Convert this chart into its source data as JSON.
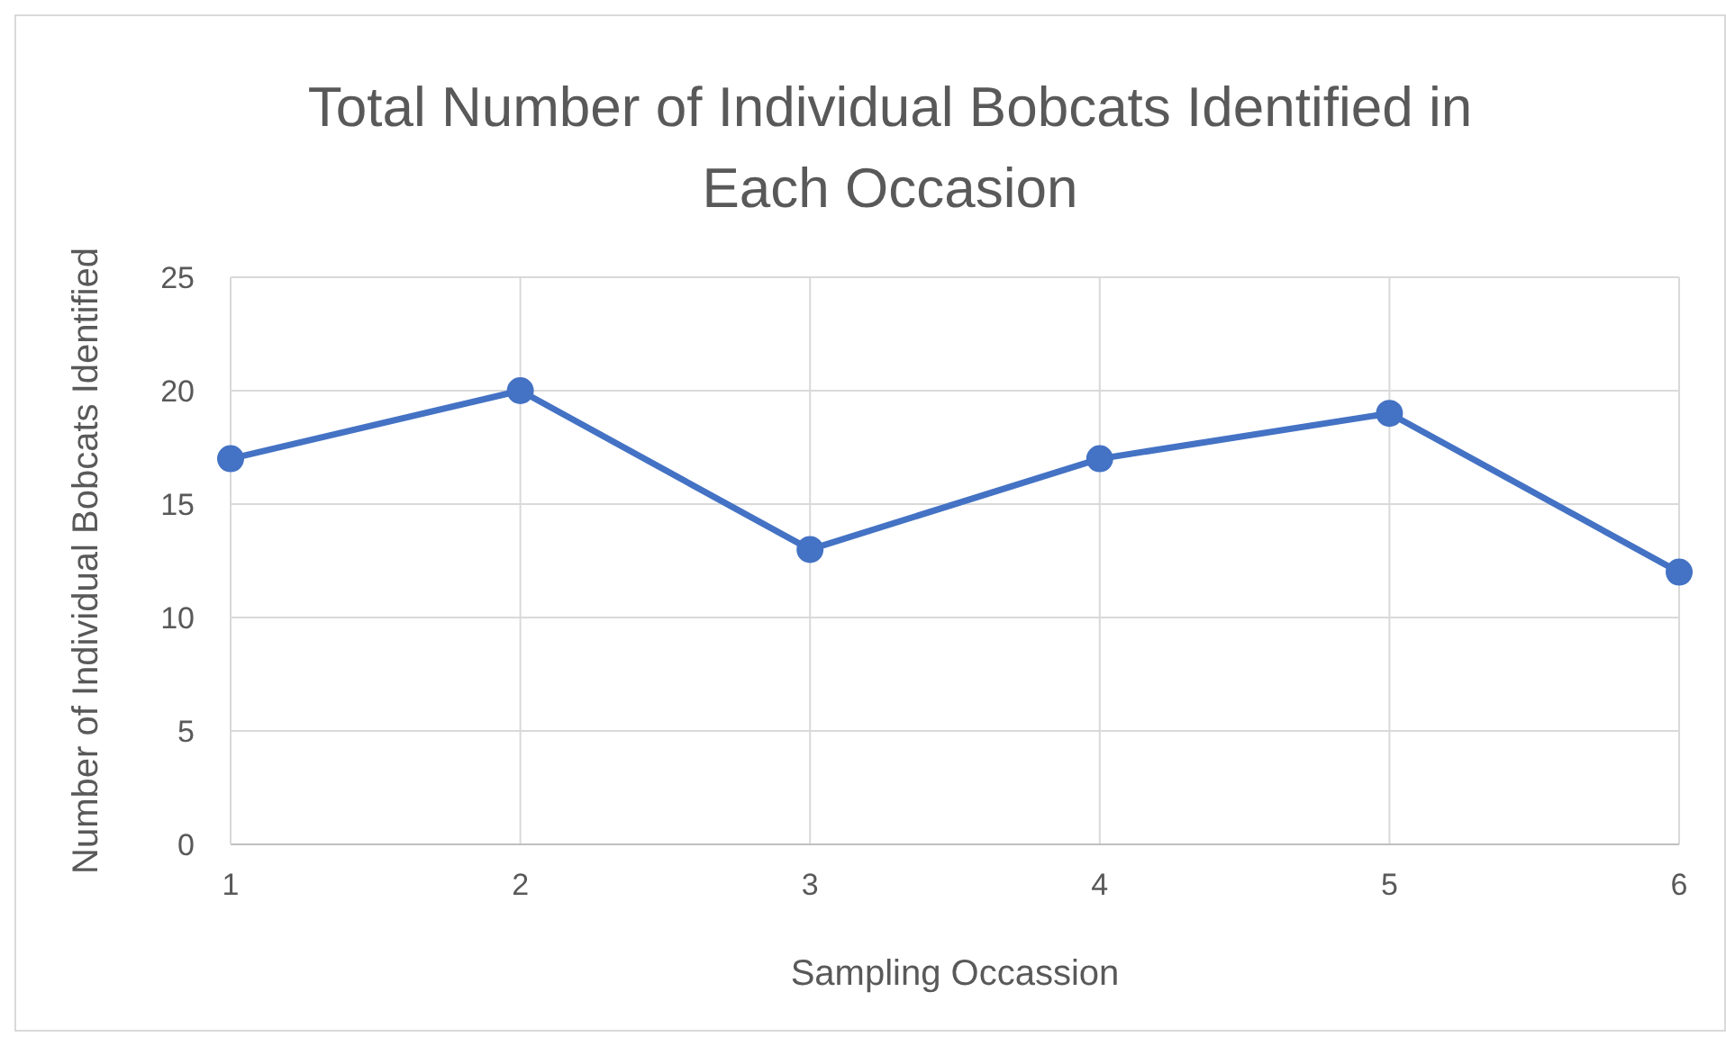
{
  "chart_data": {
    "type": "line",
    "title": "Total Number of Individual Bobcats Identified in Each Occasion",
    "xlabel": "Sampling Occassion",
    "ylabel": "Number of Individual Bobcats Identified",
    "x": [
      1,
      2,
      3,
      4,
      5,
      6
    ],
    "series": [
      {
        "color": "#4472c4",
        "values": [
          17,
          20,
          13,
          17,
          19,
          12
        ]
      }
    ],
    "xlim": [
      1,
      6
    ],
    "xticks": [
      1,
      2,
      3,
      4,
      5,
      6
    ],
    "ylim": [
      0,
      25
    ],
    "yticks": [
      0,
      5,
      10,
      15,
      20,
      25
    ],
    "grid": true,
    "marker": "circle",
    "line_style": "solid",
    "legend": false
  }
}
